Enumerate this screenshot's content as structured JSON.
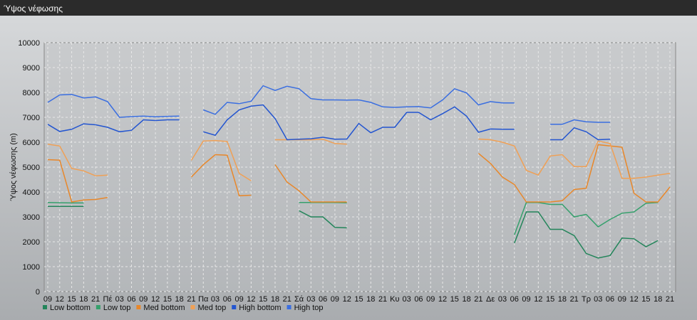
{
  "chart_data": {
    "type": "line",
    "title": "Ύψος νέφωσης",
    "y_label": "Ύψος νέφωσης (m)",
    "categories": [
      "09",
      "12",
      "15",
      "18",
      "21",
      "Πέ",
      "03",
      "06",
      "09",
      "12",
      "15",
      "18",
      "21",
      "Πα",
      "03",
      "06",
      "09",
      "12",
      "15",
      "18",
      "21",
      "Σά",
      "03",
      "06",
      "09",
      "12",
      "15",
      "18",
      "21",
      "Κυ",
      "03",
      "06",
      "09",
      "12",
      "15",
      "18",
      "21",
      "Δε",
      "03",
      "06",
      "09",
      "12",
      "15",
      "18",
      "21",
      "Τρ",
      "03",
      "06",
      "09",
      "12",
      "15",
      "18",
      "21"
    ],
    "ylim": [
      0,
      10000
    ],
    "yticks": [
      0,
      1000,
      2000,
      3000,
      4000,
      5000,
      6000,
      7000,
      8000,
      9000,
      10000
    ],
    "grid": true,
    "series": [
      {
        "name": "Low bottom",
        "color": "#23855a",
        "values": [
          3420,
          3420,
          3420,
          3420,
          null,
          null,
          null,
          null,
          null,
          null,
          null,
          null,
          null,
          null,
          null,
          null,
          null,
          null,
          null,
          null,
          null,
          3250,
          3000,
          3000,
          2580,
          2560,
          null,
          null,
          null,
          null,
          null,
          null,
          null,
          null,
          null,
          null,
          null,
          null,
          null,
          1950,
          3200,
          3200,
          2500,
          2500,
          2250,
          1530,
          1350,
          1450,
          2150,
          2120,
          1800,
          2050,
          null
        ]
      },
      {
        "name": "Low top",
        "color": "#35a06c",
        "values": [
          3580,
          3570,
          3560,
          3560,
          null,
          null,
          null,
          null,
          null,
          null,
          null,
          null,
          null,
          null,
          null,
          null,
          null,
          null,
          null,
          null,
          null,
          3580,
          3580,
          3580,
          3580,
          3570,
          null,
          null,
          null,
          null,
          null,
          null,
          null,
          null,
          null,
          null,
          null,
          null,
          null,
          2280,
          3580,
          3580,
          3500,
          3500,
          3000,
          3100,
          2600,
          2900,
          3150,
          3200,
          3550,
          3580,
          null
        ]
      },
      {
        "name": "Med bottom",
        "color": "#e8872a",
        "values": [
          5300,
          5280,
          3600,
          3680,
          3700,
          3780,
          null,
          null,
          null,
          null,
          null,
          null,
          4600,
          5100,
          5500,
          5480,
          3850,
          3870,
          null,
          5100,
          4400,
          4050,
          3600,
          3600,
          3600,
          3600,
          null,
          null,
          null,
          null,
          null,
          null,
          null,
          null,
          null,
          null,
          5550,
          5150,
          4600,
          4300,
          3600,
          3600,
          3600,
          3650,
          4100,
          4150,
          5900,
          5850,
          5800,
          3950,
          3600,
          3600,
          4200
        ]
      },
      {
        "name": "Med top",
        "color": "#f0a055",
        "values": [
          5920,
          5850,
          4950,
          4850,
          4650,
          4680,
          null,
          null,
          null,
          null,
          null,
          null,
          5270,
          6050,
          6070,
          6030,
          4750,
          4450,
          null,
          6100,
          6100,
          6100,
          6100,
          6120,
          5950,
          5920,
          null,
          null,
          null,
          null,
          null,
          null,
          null,
          null,
          null,
          null,
          6130,
          6100,
          6000,
          5850,
          4870,
          4680,
          5450,
          5500,
          5020,
          5020,
          6050,
          5950,
          4550,
          4550,
          4600,
          4680,
          4750
        ]
      },
      {
        "name": "High bottom",
        "color": "#2355d0",
        "values": [
          6720,
          6430,
          6520,
          6740,
          6700,
          6600,
          6420,
          6480,
          6900,
          6870,
          6900,
          6900,
          null,
          6420,
          6280,
          6900,
          7300,
          7450,
          7500,
          6950,
          6100,
          6120,
          6140,
          6200,
          6120,
          6130,
          6750,
          6380,
          6600,
          6600,
          7200,
          7200,
          6900,
          7150,
          7420,
          7050,
          6400,
          6530,
          6520,
          6520,
          null,
          null,
          6100,
          6100,
          6580,
          6420,
          6100,
          6120,
          null,
          null,
          null,
          null,
          null
        ]
      },
      {
        "name": "High top",
        "color": "#3a6ee0",
        "values": [
          7600,
          7900,
          7920,
          7780,
          7820,
          7630,
          7000,
          7030,
          7050,
          7020,
          7040,
          7050,
          null,
          7300,
          7120,
          7600,
          7550,
          7650,
          8270,
          8080,
          8250,
          8150,
          7750,
          7700,
          7700,
          7690,
          7700,
          7600,
          7420,
          7400,
          7420,
          7430,
          7380,
          7700,
          8150,
          7980,
          7500,
          7630,
          7580,
          7580,
          null,
          null,
          6720,
          6720,
          6900,
          6820,
          6800,
          6800,
          null,
          null,
          null,
          null,
          null
        ]
      }
    ]
  }
}
